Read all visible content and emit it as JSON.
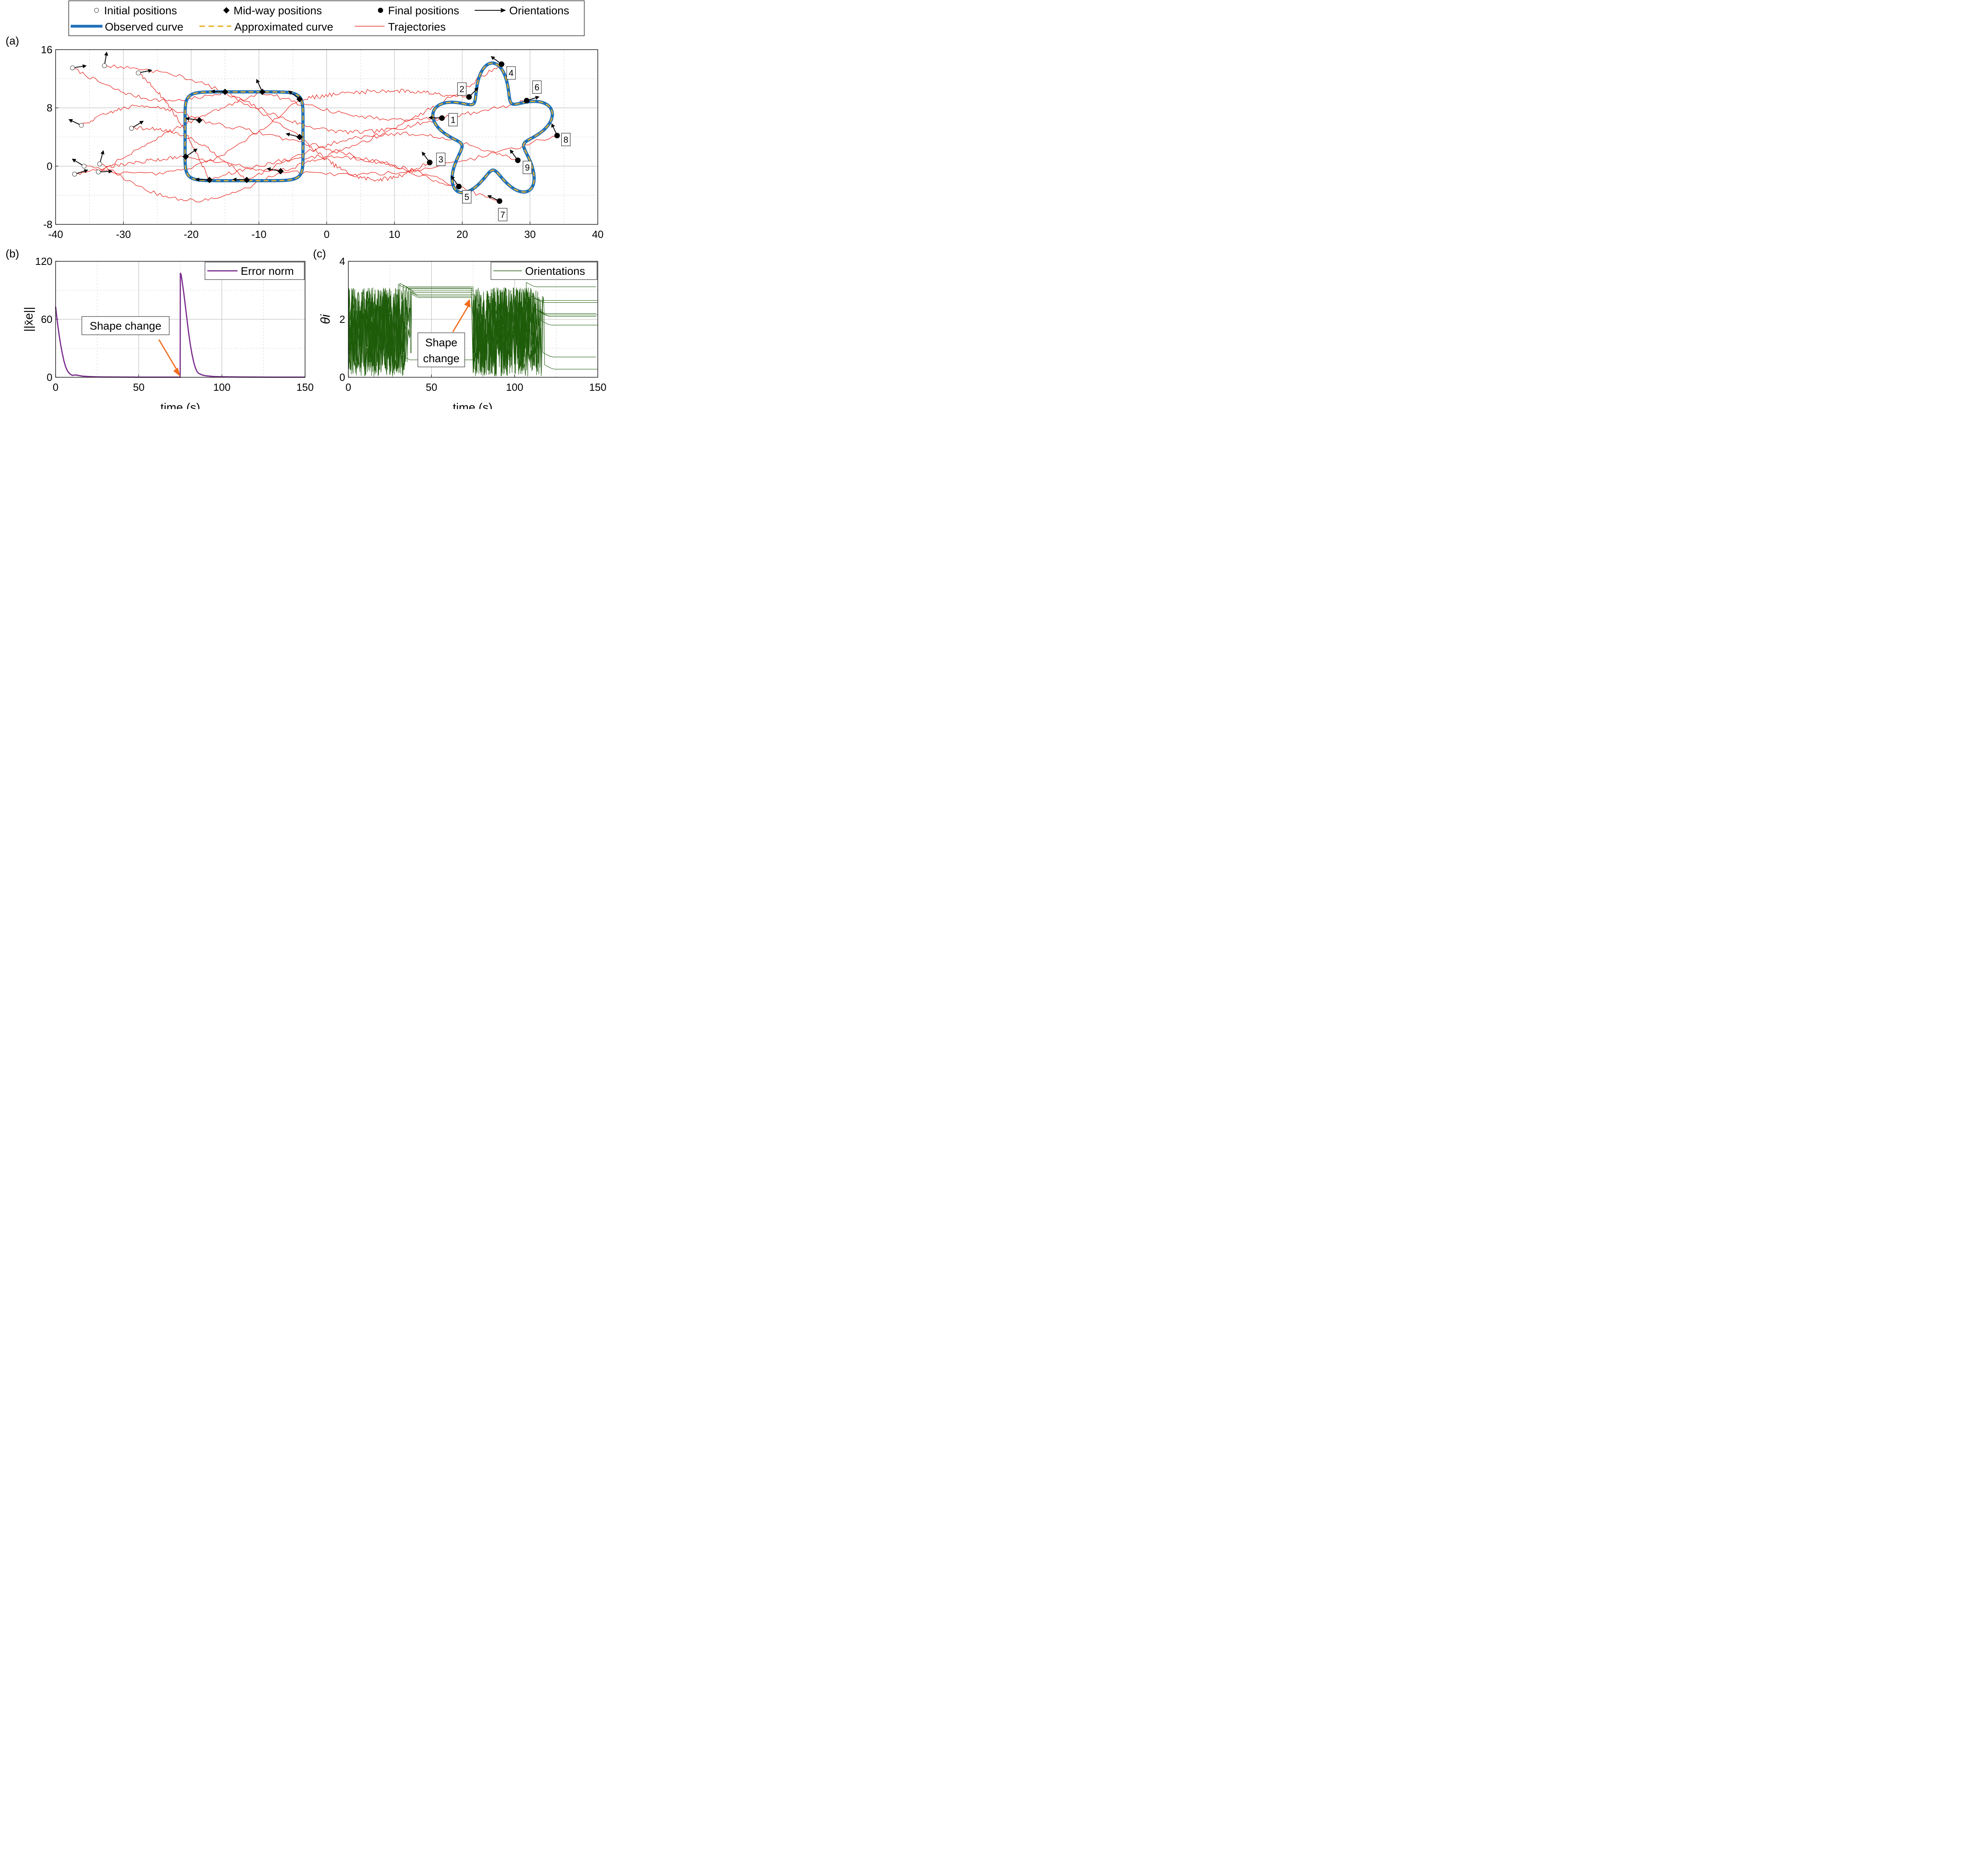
{
  "chart_data": [
    {
      "panel_label": "(a)",
      "type": "line",
      "xlim": [
        -40,
        40
      ],
      "ylim": [
        -8,
        16
      ],
      "xticks": [
        -40,
        -30,
        -20,
        -10,
        0,
        10,
        20,
        30,
        40
      ],
      "yticks": [
        -8,
        0,
        8,
        16
      ],
      "grid": true,
      "legend_placement": "top-center",
      "legend": {
        "initial": "Initial positions",
        "midway": "Mid-way positions",
        "final": "Final positions",
        "orientations": "Orientations",
        "observed": "Observed curve",
        "approximated": "Approximated curve",
        "trajectories": "Trajectories"
      },
      "colors": {
        "observed": "#1f6fb8",
        "approximated": "#e8b32a",
        "trajectories": "#e8231c",
        "markers": "#000000"
      },
      "initial_positions": [
        {
          "x": -37.5,
          "y": 13.5,
          "theta": 0.15
        },
        {
          "x": -32.8,
          "y": 13.8,
          "theta": 1.4
        },
        {
          "x": -27.8,
          "y": 12.8,
          "theta": 0.2
        },
        {
          "x": -36.2,
          "y": 5.6,
          "theta": 2.7
        },
        {
          "x": -28.8,
          "y": 5.2,
          "theta": 0.55
        },
        {
          "x": -35.8,
          "y": 0.0,
          "theta": 2.6
        },
        {
          "x": -33.5,
          "y": 0.3,
          "theta": 1.3
        },
        {
          "x": -33.7,
          "y": -0.8,
          "theta": 0.05
        },
        {
          "x": -37.2,
          "y": -1.1,
          "theta": 0.3
        }
      ],
      "midway_positions": [
        {
          "x": -15.0,
          "y": 10.2,
          "theta": 3.1
        },
        {
          "x": -9.5,
          "y": 10.2,
          "theta": 2.0
        },
        {
          "x": -4.0,
          "y": 9.2,
          "theta": 2.5
        },
        {
          "x": -18.8,
          "y": 6.3,
          "theta": 3.0
        },
        {
          "x": -4.0,
          "y": 4.0,
          "theta": 2.9
        },
        {
          "x": -20.8,
          "y": 1.3,
          "theta": 0.6
        },
        {
          "x": -6.8,
          "y": -0.7,
          "theta": 2.95
        },
        {
          "x": -11.8,
          "y": -1.9,
          "theta": 3.1
        },
        {
          "x": -17.3,
          "y": -1.9,
          "theta": 3.1
        }
      ],
      "observed_curve_midway": {
        "center": [
          -12.2,
          4.1
        ],
        "half_width": 8.7,
        "half_height": 6.1
      },
      "observed_curve_final": {
        "center": [
          24.5,
          4.5
        ],
        "base_radius": 7.0,
        "lobe_amplitude": 2.2,
        "lobes": 5
      },
      "final_positions": [
        {
          "id": "1",
          "x": 17.0,
          "y": 6.6,
          "theta": 3.1
        },
        {
          "id": "2",
          "x": 21.0,
          "y": 9.5,
          "theta": 0.8
        },
        {
          "id": "3",
          "x": 15.2,
          "y": 0.5,
          "theta": 2.2
        },
        {
          "id": "4",
          "x": 25.8,
          "y": 14.0,
          "theta": 2.5
        },
        {
          "id": "5",
          "x": 19.5,
          "y": -2.8,
          "theta": 2.2
        },
        {
          "id": "6",
          "x": 29.5,
          "y": 9.0,
          "theta": 0.3
        },
        {
          "id": "7",
          "x": 25.5,
          "y": -4.8,
          "theta": 2.7
        },
        {
          "id": "8",
          "x": 34.0,
          "y": 4.2,
          "theta": 2.0
        },
        {
          "id": "9",
          "x": 28.2,
          "y": 0.8,
          "theta": 2.2
        }
      ]
    },
    {
      "panel_label": "(b)",
      "type": "line",
      "xlabel": "time (s)",
      "ylabel": "||x̄e||",
      "xlim": [
        0,
        150
      ],
      "ylim": [
        0,
        120
      ],
      "xticks": [
        0,
        50,
        100,
        150
      ],
      "yticks": [
        0,
        60,
        120
      ],
      "grid": true,
      "legend_placement": "top-right",
      "series": [
        {
          "name": "Error norm",
          "color": "#7b2d8e",
          "x": [
            0,
            1,
            2,
            3,
            4,
            5,
            6,
            7,
            8,
            9,
            10,
            12,
            14,
            16,
            20,
            25,
            30,
            40,
            50,
            60,
            70,
            74.9,
            75,
            75.5,
            76,
            77,
            78,
            79,
            80,
            81,
            82,
            83,
            84,
            85,
            86,
            88,
            90,
            95,
            100,
            110,
            120,
            130,
            140,
            150
          ],
          "values": [
            73,
            58,
            45,
            34,
            25,
            17,
            11,
            7,
            4.5,
            3,
            2,
            2.4,
            1.8,
            1.2,
            0.7,
            0.4,
            0.3,
            0.2,
            0.1,
            0.1,
            0.1,
            0.1,
            108,
            106,
            100,
            88,
            74,
            60,
            46,
            34,
            24,
            16,
            10,
            6,
            4,
            2.5,
            1.6,
            0.8,
            0.5,
            0.3,
            0.2,
            0.1,
            0.1,
            0.1
          ]
        }
      ],
      "annotation": "Shape change",
      "annotation_arrow_target": {
        "x": 75,
        "y": 0
      },
      "arrow_color": "#f26b1d"
    },
    {
      "panel_label": "(c)",
      "type": "line",
      "xlabel": "time (s)",
      "ylabel": "θi",
      "xlim": [
        0,
        150
      ],
      "ylim": [
        0,
        4
      ],
      "xticks": [
        0,
        50,
        100,
        150
      ],
      "yticks": [
        0,
        2,
        4
      ],
      "grid": true,
      "legend_placement": "top-right",
      "series": [
        {
          "name": "Orientations",
          "color": "#1e5c0a",
          "phase1_settle_times": [
            31,
            33,
            35,
            36,
            37,
            38,
            38,
            33,
            30
          ],
          "phase1_final_values": [
            3.12,
            3.05,
            2.98,
            2.92,
            2.85,
            2.8,
            2.75,
            0.6,
            3.08
          ],
          "phase2_settle_times": [
            107,
            110,
            112,
            113,
            114,
            115,
            116,
            117,
            118
          ],
          "phase2_final_values": [
            3.12,
            2.65,
            2.58,
            2.2,
            2.15,
            2.1,
            1.8,
            0.7,
            0.28
          ]
        }
      ],
      "annotation": [
        "Shape",
        "change"
      ],
      "annotation_arrow_target": {
        "x": 73,
        "y": 2.7
      },
      "arrow_color": "#f26b1d"
    }
  ]
}
